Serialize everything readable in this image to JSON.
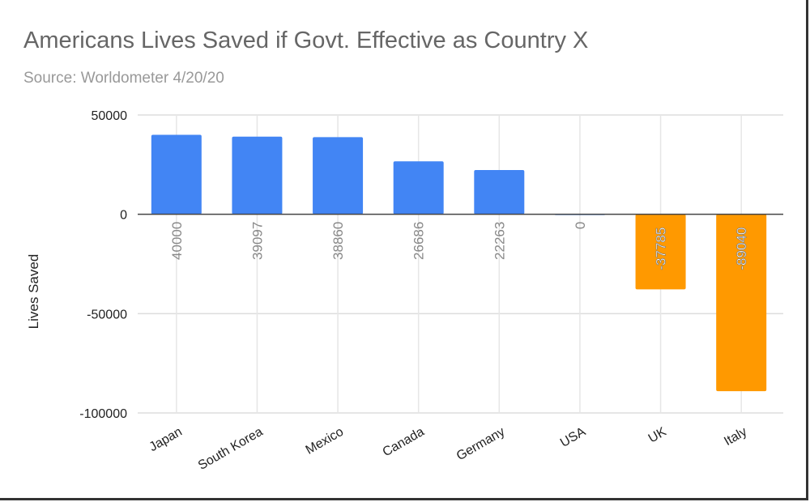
{
  "chart_data": {
    "type": "bar",
    "title": "Americans Lives Saved if Govt. Effective as Country X",
    "subtitle": "Source: Worldometer 4/20/20",
    "xlabel": "",
    "ylabel": "Lives Saved",
    "ylim": [
      -100000,
      50000
    ],
    "yticks": [
      50000,
      0,
      -50000,
      -100000
    ],
    "ytick_labels": [
      "50000",
      "0",
      "-50000",
      "-100000"
    ],
    "grid": true,
    "categories": [
      "Japan",
      "South Korea",
      "Mexico",
      "Canada",
      "Germany",
      "USA",
      "UK",
      "Italy"
    ],
    "values": [
      40000,
      39097,
      38860,
      26686,
      22263,
      0,
      -37785,
      -89040
    ],
    "data_labels": [
      "40000",
      "39097",
      "38860",
      "26686",
      "22263",
      "0",
      "-37785",
      "-89040"
    ],
    "colors": {
      "positive": "#4285f4",
      "negative": "#ff9900"
    }
  }
}
